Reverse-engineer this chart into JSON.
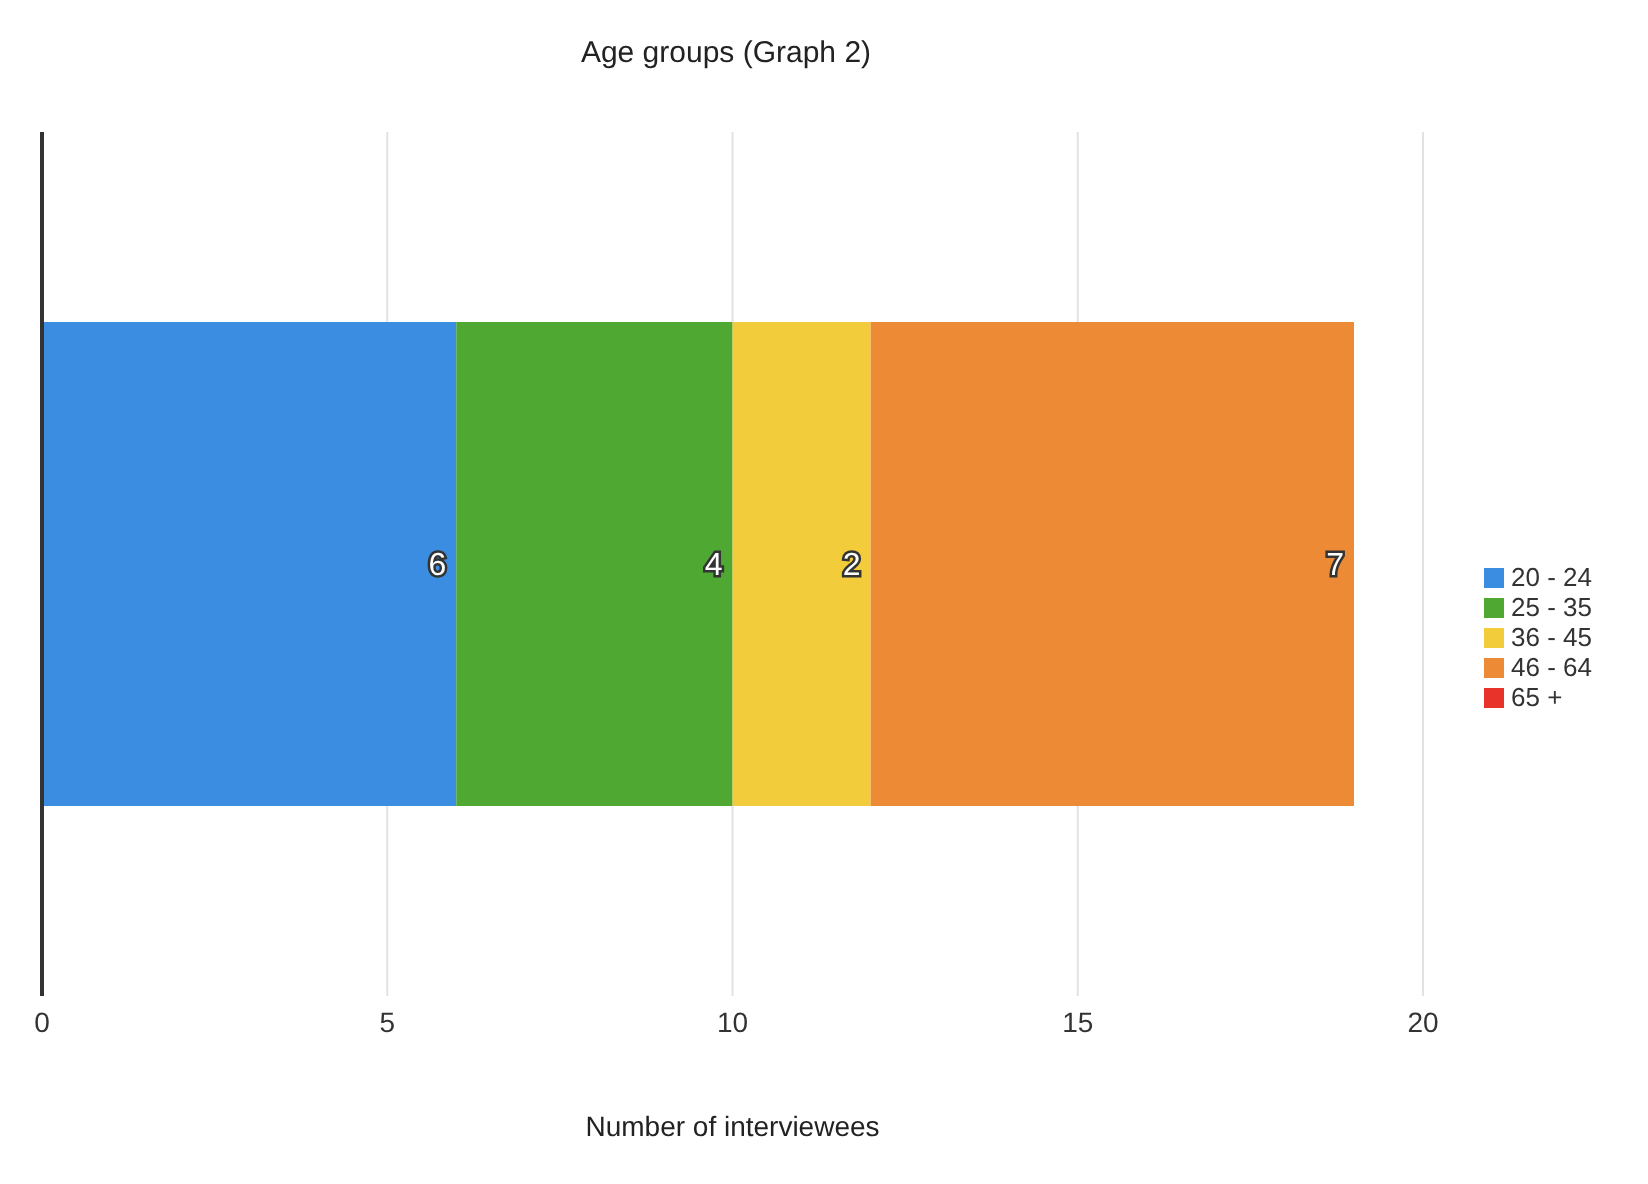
{
  "chart_data": {
    "type": "bar",
    "orientation": "horizontal",
    "stacked": true,
    "title": "Age groups (Graph 2)",
    "xlabel": "Number of interviewees",
    "categories": [
      null
    ],
    "series": [
      {
        "name": "20 - 24",
        "color": "#3a8de0",
        "values": [
          6
        ],
        "value_labels": [
          "6"
        ]
      },
      {
        "name": "25 - 35",
        "color": "#4ea832",
        "values": [
          4
        ],
        "value_labels": [
          "4"
        ]
      },
      {
        "name": "36 - 45",
        "color": "#f2cc3a",
        "values": [
          2
        ],
        "value_labels": [
          "2"
        ]
      },
      {
        "name": "46 - 64",
        "color": "#ec8a35",
        "values": [
          7
        ],
        "value_labels": [
          "7"
        ]
      },
      {
        "name": "65 +",
        "color": "#e8332a",
        "values": [
          0
        ],
        "value_labels": [
          null
        ]
      }
    ],
    "xlim": [
      0,
      20
    ],
    "xticks": [
      0,
      5,
      10,
      15,
      20
    ],
    "grid": "x",
    "legend": "right"
  }
}
